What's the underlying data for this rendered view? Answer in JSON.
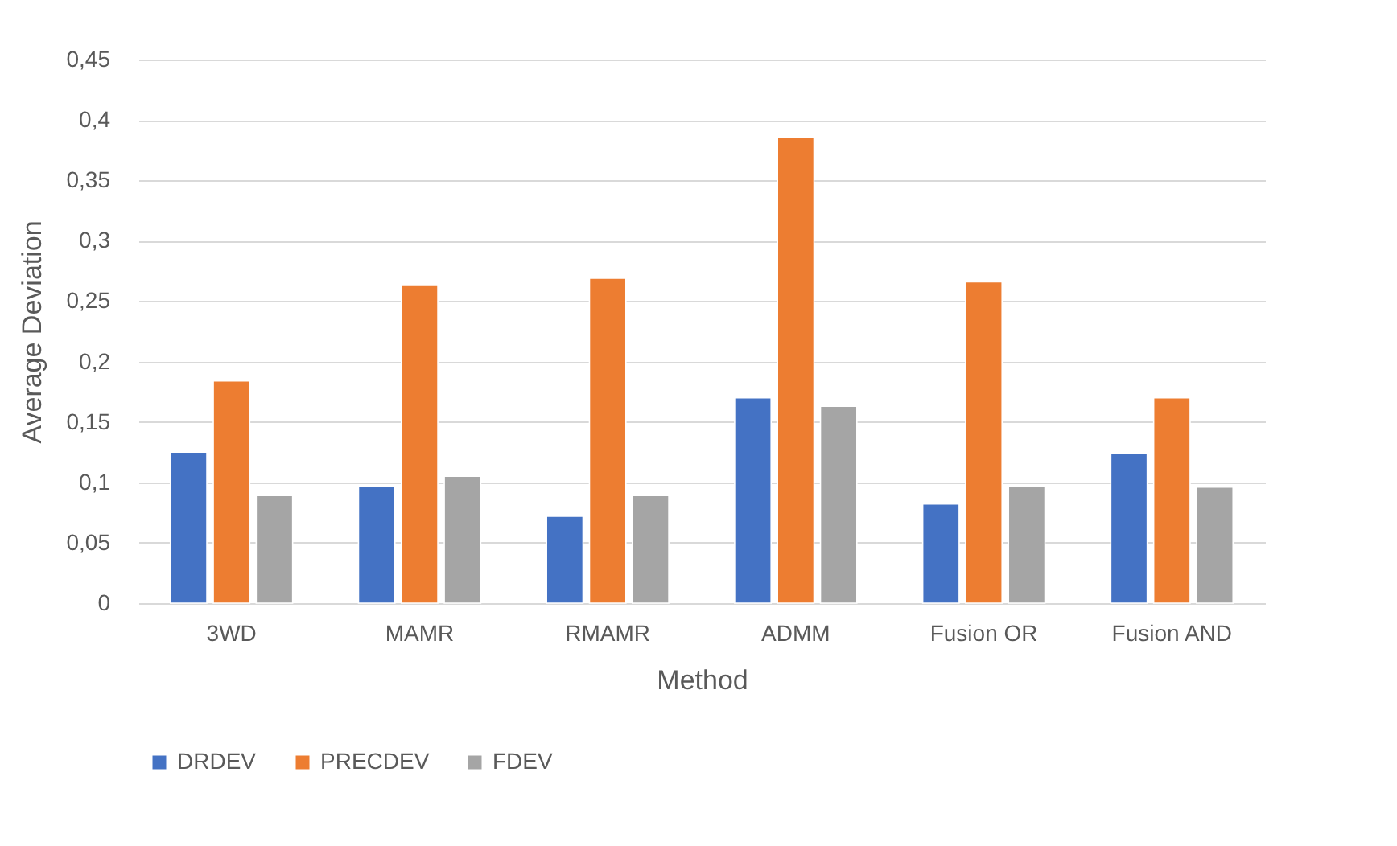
{
  "chart_data": {
    "type": "bar",
    "xlabel": "Method",
    "ylabel": "Average Deviation",
    "categories": [
      "3WD",
      "MAMR",
      "RMAMR",
      "ADMM",
      "Fusion OR",
      "Fusion AND"
    ],
    "series": [
      {
        "name": "DRDEV",
        "color": "#4472c4",
        "values": [
          0.125,
          0.097,
          0.072,
          0.17,
          0.082,
          0.124
        ]
      },
      {
        "name": "PRECDEV",
        "color": "#ed7d31",
        "values": [
          0.184,
          0.263,
          0.269,
          0.386,
          0.266,
          0.17
        ]
      },
      {
        "name": "FDEV",
        "color": "#a5a5a5",
        "values": [
          0.089,
          0.105,
          0.089,
          0.163,
          0.097,
          0.096
        ]
      }
    ],
    "ylim": [
      0,
      0.45
    ],
    "yticks": [
      0,
      {
        "value": 0.05,
        "label": "0,05"
      },
      {
        "value": 0.1,
        "label": "0,1"
      },
      {
        "value": 0.15,
        "label": "0,15"
      },
      {
        "value": 0.2,
        "label": "0,2"
      },
      {
        "value": 0.25,
        "label": "0,25"
      },
      {
        "value": 0.3,
        "label": "0,3"
      },
      {
        "value": 0.35,
        "label": "0,35"
      },
      {
        "value": 0.4,
        "label": "0,4"
      },
      {
        "value": 0.45,
        "label": "0,45"
      }
    ],
    "grid": "y",
    "legend": "bottom"
  }
}
